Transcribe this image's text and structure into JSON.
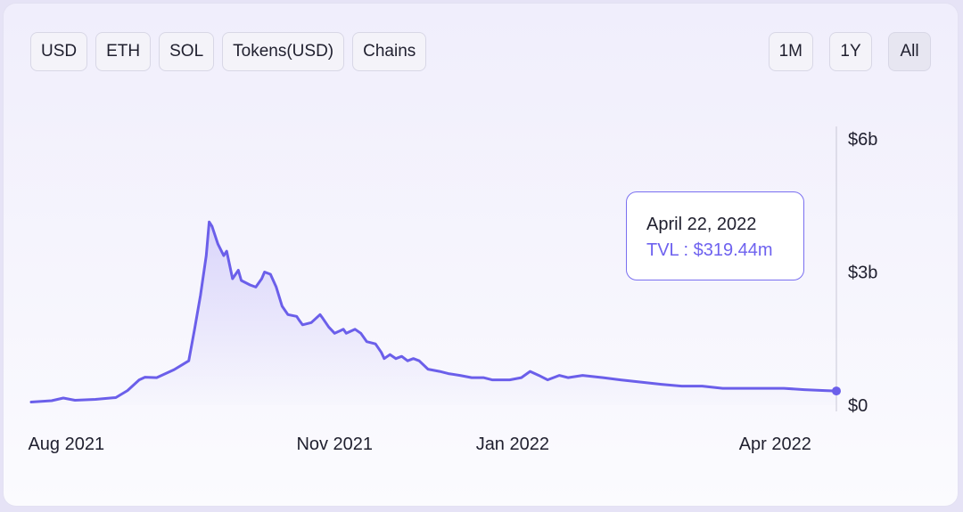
{
  "currency_buttons": [
    {
      "label": "USD",
      "name": "usd-button"
    },
    {
      "label": "ETH",
      "name": "eth-button"
    },
    {
      "label": "SOL",
      "name": "sol-button"
    },
    {
      "label": "Tokens(USD)",
      "name": "tokens-usd-button"
    },
    {
      "label": "Chains",
      "name": "chains-button"
    }
  ],
  "range_buttons": [
    {
      "label": "1M",
      "name": "range-1m-button",
      "active": false
    },
    {
      "label": "1Y",
      "name": "range-1y-button",
      "active": false
    },
    {
      "label": "All",
      "name": "range-all-button",
      "active": true
    }
  ],
  "tooltip": {
    "date": "April 22, 2022",
    "value_text": "TVL : $319.44m"
  },
  "colors": {
    "line": "#6b5fea",
    "fill": "#a79cf5",
    "accent_text": "#6e62ef"
  },
  "chart_data": {
    "type": "area",
    "ylabel": "",
    "xlabel": "",
    "ylim": [
      0,
      6000
    ],
    "y_unit": "millions USD",
    "y_ticks": [
      {
        "value": 6000,
        "label": "$6b"
      },
      {
        "value": 3000,
        "label": "$3b"
      },
      {
        "value": 0,
        "label": "$0"
      }
    ],
    "x_ticks": [
      {
        "value": "2021-08-01",
        "label": "Aug 2021"
      },
      {
        "value": "2021-11-01",
        "label": "Nov 2021"
      },
      {
        "value": "2022-01-01",
        "label": "Jan 2022"
      },
      {
        "value": "2022-04-01",
        "label": "Apr 2022"
      }
    ],
    "x_range": [
      "2021-07-20",
      "2022-04-22"
    ],
    "series": [
      {
        "values": [
          [
            "2021-07-20",
            70
          ],
          [
            "2021-07-27",
            100
          ],
          [
            "2021-07-31",
            160
          ],
          [
            "2021-08-04",
            110
          ],
          [
            "2021-08-11",
            130
          ],
          [
            "2021-08-18",
            170
          ],
          [
            "2021-08-22",
            330
          ],
          [
            "2021-08-26",
            570
          ],
          [
            "2021-08-28",
            630
          ],
          [
            "2021-09-01",
            620
          ],
          [
            "2021-09-04",
            710
          ],
          [
            "2021-09-07",
            800
          ],
          [
            "2021-09-10",
            920
          ],
          [
            "2021-09-12",
            1000
          ],
          [
            "2021-09-14",
            1710
          ],
          [
            "2021-09-16",
            2470
          ],
          [
            "2021-09-18",
            3370
          ],
          [
            "2021-09-19",
            4130
          ],
          [
            "2021-09-20",
            4030
          ],
          [
            "2021-09-22",
            3630
          ],
          [
            "2021-09-24",
            3370
          ],
          [
            "2021-09-25",
            3470
          ],
          [
            "2021-09-27",
            2850
          ],
          [
            "2021-09-29",
            3040
          ],
          [
            "2021-09-30",
            2810
          ],
          [
            "2021-10-03",
            2710
          ],
          [
            "2021-10-05",
            2660
          ],
          [
            "2021-10-07",
            2850
          ],
          [
            "2021-10-08",
            3000
          ],
          [
            "2021-10-10",
            2950
          ],
          [
            "2021-10-12",
            2660
          ],
          [
            "2021-10-14",
            2230
          ],
          [
            "2021-10-16",
            2040
          ],
          [
            "2021-10-19",
            2000
          ],
          [
            "2021-10-20",
            1900
          ],
          [
            "2021-10-21",
            1810
          ],
          [
            "2021-10-24",
            1860
          ],
          [
            "2021-10-27",
            2040
          ],
          [
            "2021-10-28",
            1950
          ],
          [
            "2021-10-30",
            1760
          ],
          [
            "2021-11-01",
            1620
          ],
          [
            "2021-11-04",
            1710
          ],
          [
            "2021-11-05",
            1620
          ],
          [
            "2021-11-08",
            1710
          ],
          [
            "2021-11-10",
            1620
          ],
          [
            "2021-11-12",
            1430
          ],
          [
            "2021-11-15",
            1380
          ],
          [
            "2021-11-17",
            1190
          ],
          [
            "2021-11-18",
            1050
          ],
          [
            "2021-11-20",
            1140
          ],
          [
            "2021-11-22",
            1050
          ],
          [
            "2021-11-24",
            1100
          ],
          [
            "2021-11-26",
            1000
          ],
          [
            "2021-11-28",
            1050
          ],
          [
            "2021-11-30",
            1000
          ],
          [
            "2021-12-03",
            810
          ],
          [
            "2021-12-07",
            760
          ],
          [
            "2021-12-10",
            710
          ],
          [
            "2021-12-14",
            670
          ],
          [
            "2021-12-18",
            620
          ],
          [
            "2021-12-22",
            620
          ],
          [
            "2021-12-25",
            570
          ],
          [
            "2021-12-31",
            570
          ],
          [
            "2022-01-04",
            620
          ],
          [
            "2022-01-07",
            760
          ],
          [
            "2022-01-10",
            670
          ],
          [
            "2022-01-13",
            570
          ],
          [
            "2022-01-17",
            670
          ],
          [
            "2022-01-20",
            620
          ],
          [
            "2022-01-25",
            670
          ],
          [
            "2022-02-01",
            620
          ],
          [
            "2022-02-07",
            570
          ],
          [
            "2022-02-14",
            520
          ],
          [
            "2022-02-21",
            470
          ],
          [
            "2022-02-28",
            430
          ],
          [
            "2022-03-07",
            430
          ],
          [
            "2022-03-14",
            380
          ],
          [
            "2022-03-21",
            380
          ],
          [
            "2022-03-28",
            380
          ],
          [
            "2022-04-04",
            380
          ],
          [
            "2022-04-11",
            350
          ],
          [
            "2022-04-18",
            330
          ],
          [
            "2022-04-22",
            319.44
          ]
        ]
      }
    ],
    "highlight": {
      "x": "2022-04-22",
      "y": 319.44
    }
  }
}
